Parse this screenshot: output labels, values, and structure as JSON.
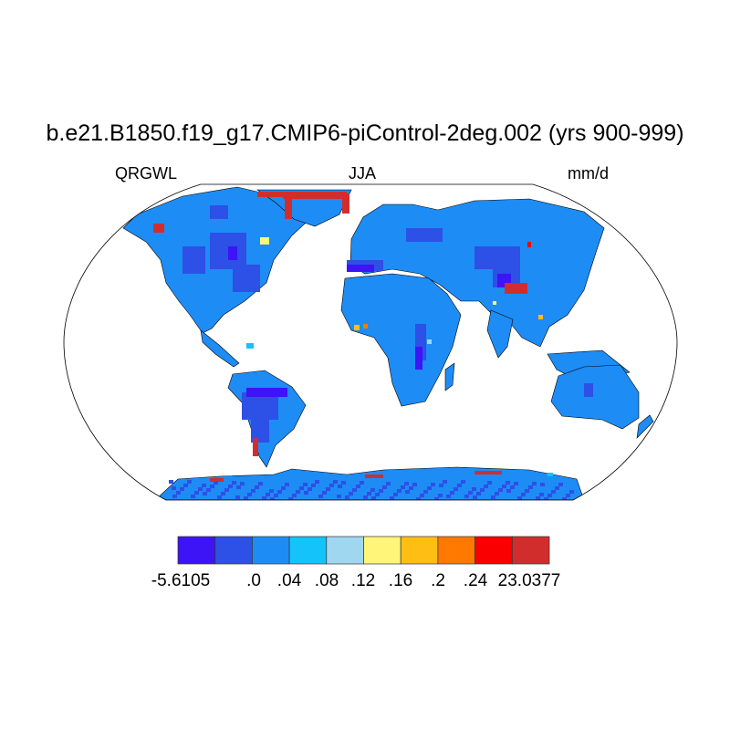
{
  "title": "b.e21.B1850.f19_g17.CMIP6-piControl-2deg.002 (yrs 900-999)",
  "left_string": "QRGWL",
  "center_string": "JJA",
  "right_string": "mm/d",
  "map": {
    "projection": "Robinson",
    "land_base_color": "#1e8cf5",
    "background": "#ffffff"
  },
  "colorbar": {
    "colors": [
      "#3c14f5",
      "#2d50e6",
      "#1e8cf5",
      "#14c3fa",
      "#a0d7f0",
      "#fff578",
      "#ffbe14",
      "#ff7800",
      "#fa0000",
      "#d22d2d"
    ],
    "labels": [
      "-5.6105",
      ".0",
      ".04",
      ".08",
      ".12",
      ".16",
      ".2",
      ".24",
      "23.0377"
    ]
  }
}
